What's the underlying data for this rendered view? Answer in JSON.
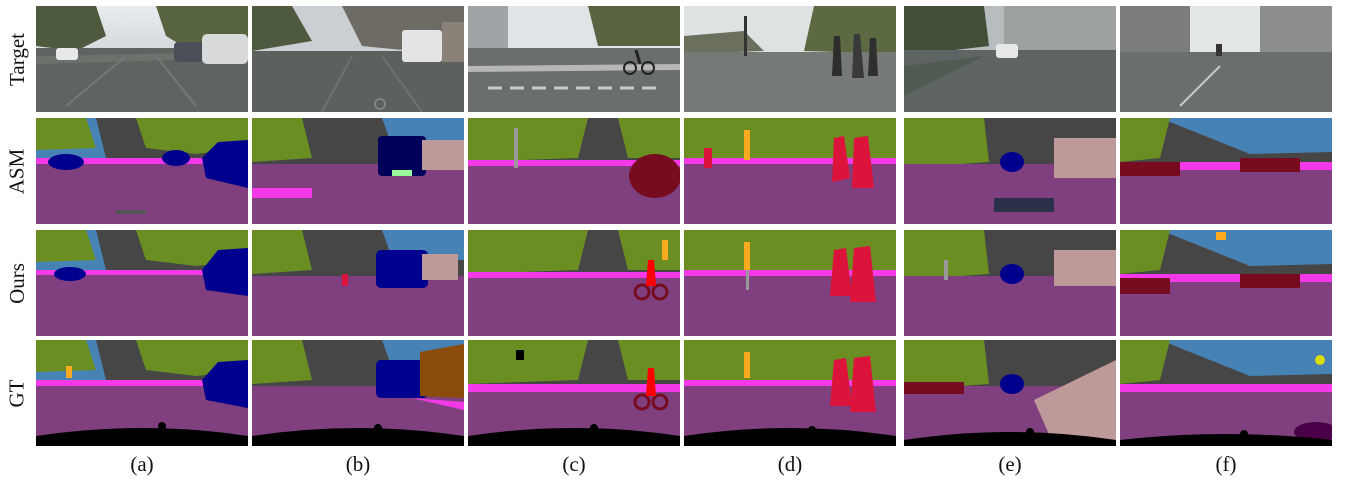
{
  "row_labels": [
    "Target",
    "ASM",
    "Ours",
    "GT"
  ],
  "column_labels": [
    "(a)",
    "(b)",
    "(c)",
    "(d)",
    "(e)",
    "(f)"
  ],
  "colors": {
    "road": "#80407f",
    "sidewalk": "#f43ae8",
    "vegetation": "#6b8e23",
    "sky": "#4682b4",
    "building": "#464646",
    "car": "#00008e",
    "person": "#dc143c",
    "rider": "#ff0000",
    "bicycle": "#770b20",
    "pole": "#999999",
    "traffic_sign": "#dcdc00",
    "traffic_light": "#faaa1e",
    "wall": "#66669c",
    "fence": "#be9999",
    "terrain": "#98fb98",
    "void": "#000000"
  }
}
